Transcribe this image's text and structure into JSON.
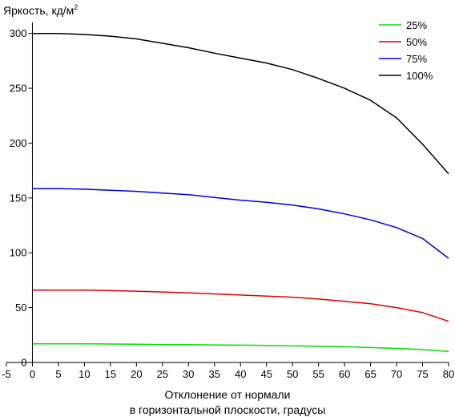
{
  "chart_data": {
    "type": "line",
    "title": "",
    "ylabel_main": "Яркость, кд/м",
    "ylabel_sup": "2",
    "xlabel_line1": "Отклонение от нормали",
    "xlabel_line2": "в горизонтальной плоскости, градусы",
    "xlim": [
      -5,
      80
    ],
    "ylim": [
      0,
      310
    ],
    "x_ticks": [
      -5,
      0,
      5,
      10,
      15,
      20,
      25,
      30,
      35,
      40,
      45,
      50,
      55,
      60,
      65,
      70,
      75,
      80
    ],
    "y_ticks": [
      0,
      50,
      100,
      150,
      200,
      250,
      300
    ],
    "grid": false,
    "legend_position": "top-right",
    "x": [
      0,
      5,
      10,
      15,
      20,
      25,
      30,
      35,
      40,
      45,
      50,
      55,
      60,
      65,
      70,
      75,
      80
    ],
    "series": [
      {
        "name": "25%",
        "color": "#00e000",
        "values": [
          17,
          17,
          17,
          16.8,
          16.6,
          16.4,
          16.2,
          16,
          15.8,
          15.5,
          15.2,
          14.8,
          14.3,
          13.6,
          12.8,
          11.8,
          10
        ]
      },
      {
        "name": "50%",
        "color": "#e00000",
        "values": [
          66,
          66,
          66,
          65.5,
          65,
          64.3,
          63.5,
          62.5,
          61.5,
          60.5,
          59.5,
          57.8,
          55.8,
          53.5,
          50,
          45.5,
          37.5
        ]
      },
      {
        "name": "75%",
        "color": "#0000e0",
        "values": [
          158.5,
          158.5,
          158,
          157,
          156,
          154.5,
          153,
          150.5,
          148,
          146,
          143.5,
          140,
          135.5,
          130,
          123,
          113,
          95
        ]
      },
      {
        "name": "100%",
        "color": "#000000",
        "values": [
          300,
          300,
          299,
          297.5,
          295,
          291,
          287,
          282,
          277.5,
          273,
          267,
          259,
          250,
          239,
          223,
          199,
          172
        ]
      }
    ]
  }
}
